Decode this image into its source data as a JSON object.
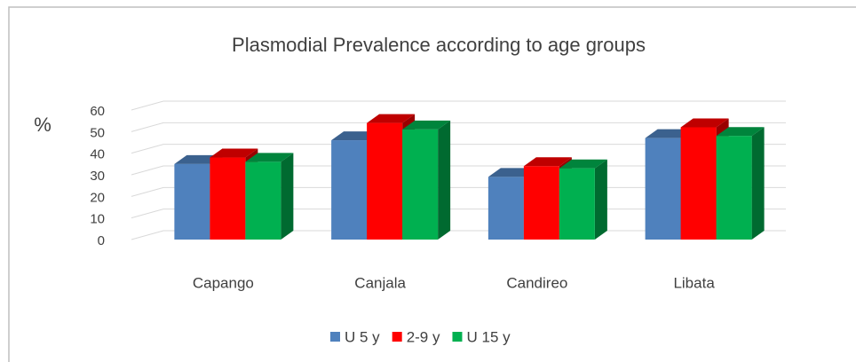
{
  "chart_data": {
    "type": "bar3d",
    "title": "Plasmodial Prevalence according to age groups",
    "y_label": "%",
    "categories": [
      "Capango",
      "Canjala",
      "Candireo",
      "Libata"
    ],
    "series": [
      {
        "name": "U 5 y",
        "color": "#4f81bd",
        "values": [
          35,
          46,
          29,
          47
        ]
      },
      {
        "name": "2-9 y",
        "color": "#ff0000",
        "values": [
          38,
          54,
          34,
          52
        ]
      },
      {
        "name": "U 15 y",
        "color": "#00b050",
        "values": [
          36,
          51,
          33,
          48
        ]
      }
    ],
    "ylim": [
      0,
      60
    ],
    "yticks": [
      0,
      10,
      20,
      30,
      40,
      50,
      60
    ],
    "grid": true,
    "legend": "bottom"
  }
}
